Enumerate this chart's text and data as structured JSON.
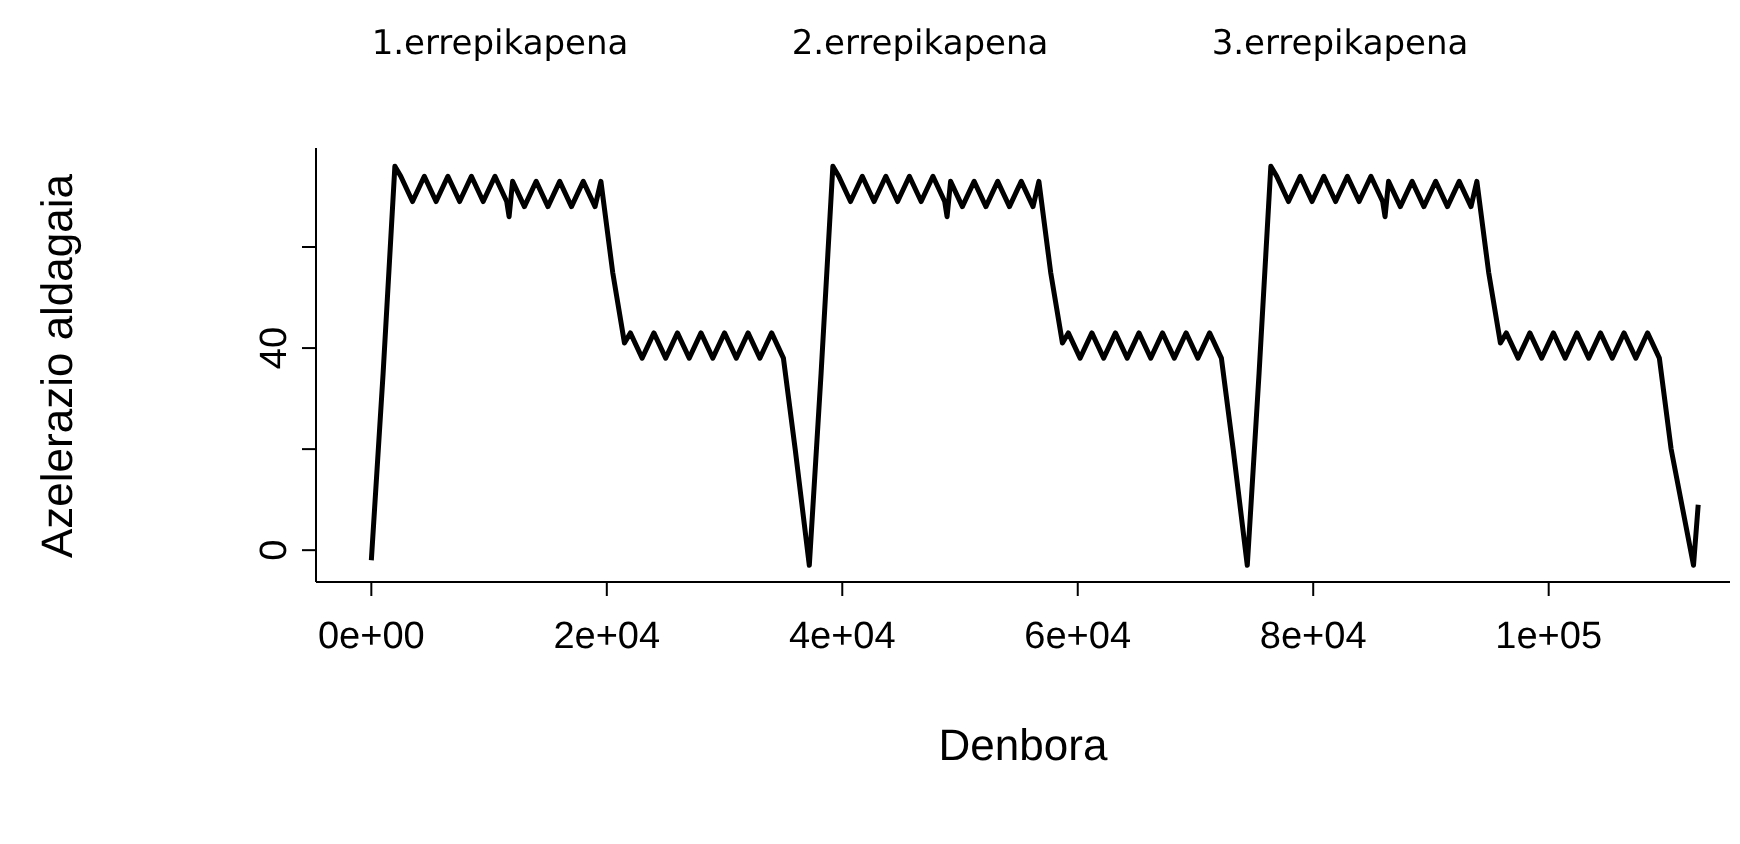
{
  "chart_data": {
    "type": "line",
    "xlabel": "Denbora",
    "ylabel": "Azelerazio aldagaia",
    "annotations": [
      "1.errepikapena",
      "2.errepikapena",
      "3.errepikapena"
    ],
    "xlim": [
      -4700,
      115400
    ],
    "ylim": [
      -6.3,
      79.6
    ],
    "xticks": [
      {
        "value": 0,
        "label": "0e+00"
      },
      {
        "value": 20000,
        "label": "2e+04"
      },
      {
        "value": 40000,
        "label": "4e+04"
      },
      {
        "value": 60000,
        "label": "6e+04"
      },
      {
        "value": 80000,
        "label": "8e+04"
      },
      {
        "value": 100000,
        "label": "1e+05"
      }
    ],
    "yticks": [
      0,
      {
        "value": 20,
        "label": null
      },
      40,
      {
        "value": 60,
        "label": null
      }
    ],
    "series": [
      {
        "color": "#000000",
        "x": [
          0,
          1000,
          2000,
          2500,
          3500,
          4500,
          5500,
          6500,
          7500,
          8500,
          9500,
          10500,
          11500,
          11700,
          12000,
          13000,
          14000,
          15000,
          16000,
          17000,
          18000,
          19000,
          19500,
          20500,
          21500,
          22000,
          23000,
          24000,
          25000,
          26000,
          27000,
          28000,
          29000,
          30000,
          31000,
          32000,
          33000,
          34000,
          35000,
          36000,
          37200,
          38200,
          39200,
          39700,
          40700,
          41700,
          42700,
          43700,
          44700,
          45700,
          46700,
          47700,
          48700,
          48900,
          49200,
          50200,
          51200,
          52200,
          53200,
          54200,
          55200,
          56200,
          56700,
          57700,
          58700,
          59200,
          60200,
          61200,
          62200,
          63200,
          64200,
          65200,
          66200,
          67200,
          68200,
          69200,
          70200,
          71200,
          72200,
          73200,
          74400,
          75400,
          76400,
          76900,
          77900,
          78900,
          79900,
          80900,
          81900,
          82900,
          83900,
          84900,
          85900,
          86100,
          86400,
          87400,
          88400,
          89400,
          90400,
          91400,
          92400,
          93400,
          93900,
          94900,
          95900,
          96400,
          97400,
          98400,
          99400,
          100400,
          101400,
          102400,
          103400,
          104400,
          105400,
          106400,
          107400,
          108400,
          109400,
          110400,
          112300,
          112700
        ],
        "values": [
          -2,
          35,
          76,
          74,
          69,
          74,
          69,
          74,
          69,
          74,
          69,
          74,
          69,
          66,
          73,
          68,
          73,
          68,
          73,
          68,
          73,
          68,
          73,
          55,
          41,
          43,
          38,
          43,
          38,
          43,
          38,
          43,
          38,
          43,
          38,
          43,
          38,
          43,
          38,
          20,
          -3,
          35,
          76,
          74,
          69,
          74,
          69,
          74,
          69,
          74,
          69,
          74,
          69,
          66,
          73,
          68,
          73,
          68,
          73,
          68,
          73,
          68,
          73,
          55,
          41,
          43,
          38,
          43,
          38,
          43,
          38,
          43,
          38,
          43,
          38,
          43,
          38,
          43,
          38,
          20,
          -3,
          35,
          76,
          74,
          69,
          74,
          69,
          74,
          69,
          74,
          69,
          74,
          69,
          66,
          73,
          68,
          73,
          68,
          73,
          68,
          73,
          68,
          73,
          55,
          41,
          43,
          38,
          43,
          38,
          43,
          38,
          43,
          38,
          43,
          38,
          43,
          38,
          43,
          38,
          20,
          -3,
          9
        ]
      }
    ]
  }
}
